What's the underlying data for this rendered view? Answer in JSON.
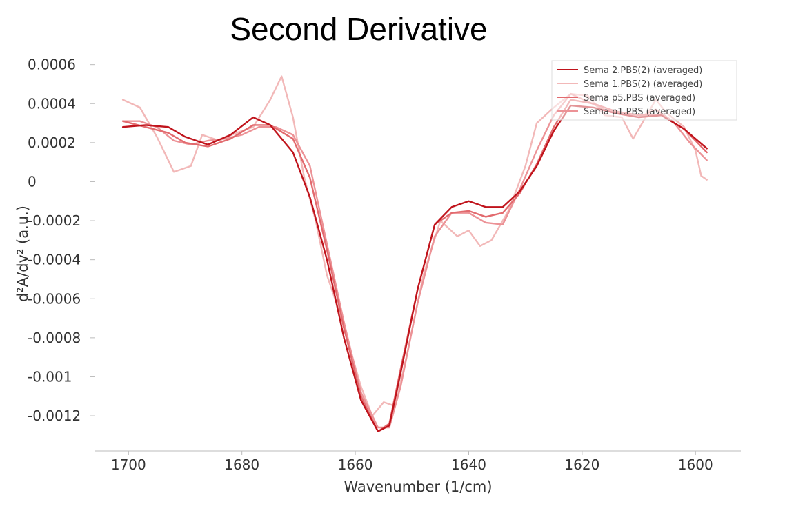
{
  "chart_data": {
    "type": "line",
    "title": "Second Derivative",
    "xlabel": "Wavenumber (1/cm)",
    "ylabel": "d²A/dv² (a.u.)",
    "xlim": [
      1706,
      1592
    ],
    "ylim": [
      -0.00138,
      0.00062
    ],
    "x_reversed": true,
    "grid": false,
    "legend_position": "top-right",
    "x_ticks": [
      {
        "value": 1700,
        "label": "1700"
      },
      {
        "value": 1680,
        "label": "1680"
      },
      {
        "value": 1660,
        "label": "1660"
      },
      {
        "value": 1640,
        "label": "1640"
      },
      {
        "value": 1620,
        "label": "1620"
      },
      {
        "value": 1600,
        "label": "1600"
      }
    ],
    "y_ticks": [
      {
        "value": 0.0006,
        "label": "0.0006"
      },
      {
        "value": 0.0004,
        "label": "0.0004"
      },
      {
        "value": 0.0002,
        "label": "0.0002"
      },
      {
        "value": 0,
        "label": "0"
      },
      {
        "value": -0.0002,
        "label": "-0.0002"
      },
      {
        "value": -0.0004,
        "label": "-0.0004"
      },
      {
        "value": -0.0006,
        "label": "-0.0006"
      },
      {
        "value": -0.0008,
        "label": "-0.0008"
      },
      {
        "value": -0.001,
        "label": "-0.001"
      },
      {
        "value": -0.0012,
        "label": "-0.0012"
      }
    ],
    "series": [
      {
        "name": "Sema 2.PBS(2) (averaged)",
        "color": "#c0141c",
        "points": [
          [
            1701,
            0.00028
          ],
          [
            1697,
            0.00029
          ],
          [
            1693,
            0.00028
          ],
          [
            1690,
            0.00023
          ],
          [
            1686,
            0.00019
          ],
          [
            1682,
            0.00024
          ],
          [
            1678,
            0.00033
          ],
          [
            1675,
            0.00029
          ],
          [
            1671,
            0.00015
          ],
          [
            1668,
            -8e-05
          ],
          [
            1665,
            -0.0004
          ],
          [
            1662,
            -0.0008
          ],
          [
            1659,
            -0.00112
          ],
          [
            1656,
            -0.00128
          ],
          [
            1654,
            -0.00125
          ],
          [
            1652,
            -0.00098
          ],
          [
            1649,
            -0.00055
          ],
          [
            1646,
            -0.00022
          ],
          [
            1643,
            -0.00013
          ],
          [
            1640,
            -0.0001
          ],
          [
            1637,
            -0.00013
          ],
          [
            1634,
            -0.00013
          ],
          [
            1631,
            -5e-05
          ],
          [
            1628,
            8e-05
          ],
          [
            1625,
            0.00026
          ],
          [
            1622,
            0.00039
          ],
          [
            1618,
            0.00038
          ],
          [
            1614,
            0.00035
          ],
          [
            1610,
            0.00033
          ],
          [
            1606,
            0.00034
          ],
          [
            1602,
            0.00027
          ],
          [
            1598,
            0.00017
          ]
        ]
      },
      {
        "name": "Sema 1.PBS(2) (averaged)",
        "color": "#f2b8b8",
        "points": [
          [
            1701,
            0.00042
          ],
          [
            1698,
            0.00038
          ],
          [
            1695,
            0.00023
          ],
          [
            1692,
            5e-05
          ],
          [
            1689,
            8e-05
          ],
          [
            1687,
            0.00024
          ],
          [
            1684,
            0.00021
          ],
          [
            1681,
            0.00025
          ],
          [
            1678,
            0.00028
          ],
          [
            1675,
            0.00042
          ],
          [
            1673,
            0.00054
          ],
          [
            1671,
            0.00033
          ],
          [
            1669,
            2e-05
          ],
          [
            1667,
            -0.0002
          ],
          [
            1665,
            -0.00048
          ],
          [
            1663,
            -0.00065
          ],
          [
            1661,
            -0.00085
          ],
          [
            1659,
            -0.00105
          ],
          [
            1657,
            -0.0012
          ],
          [
            1655,
            -0.00113
          ],
          [
            1653,
            -0.00115
          ],
          [
            1651,
            -0.0009
          ],
          [
            1648,
            -0.00048
          ],
          [
            1645,
            -0.0002
          ],
          [
            1642,
            -0.00028
          ],
          [
            1640,
            -0.00025
          ],
          [
            1638,
            -0.00033
          ],
          [
            1636,
            -0.0003
          ],
          [
            1633,
            -0.00015
          ],
          [
            1630,
            8e-05
          ],
          [
            1628,
            0.0003
          ],
          [
            1625,
            0.00038
          ],
          [
            1622,
            0.00045
          ],
          [
            1619,
            0.00044
          ],
          [
            1616,
            0.00034
          ],
          [
            1613,
            0.00033
          ],
          [
            1611,
            0.00022
          ],
          [
            1609,
            0.00032
          ],
          [
            1607,
            0.00042
          ],
          [
            1605,
            0.00035
          ],
          [
            1602,
            0.00028
          ],
          [
            1600,
            0.00016
          ],
          [
            1599,
            3e-05
          ],
          [
            1598,
            1e-05
          ]
        ]
      },
      {
        "name": "Sema p5.PBS (averaged)",
        "color": "#e26a6e",
        "points": [
          [
            1701,
            0.00031
          ],
          [
            1697,
            0.00028
          ],
          [
            1693,
            0.00025
          ],
          [
            1690,
            0.0002
          ],
          [
            1686,
            0.00018
          ],
          [
            1682,
            0.00022
          ],
          [
            1678,
            0.00029
          ],
          [
            1675,
            0.00029
          ],
          [
            1671,
            0.00022
          ],
          [
            1668,
            2e-05
          ],
          [
            1665,
            -0.00035
          ],
          [
            1662,
            -0.00075
          ],
          [
            1659,
            -0.0011
          ],
          [
            1656,
            -0.00128
          ],
          [
            1654,
            -0.00124
          ],
          [
            1652,
            -0.00096
          ],
          [
            1649,
            -0.00055
          ],
          [
            1646,
            -0.00022
          ],
          [
            1643,
            -0.00016
          ],
          [
            1640,
            -0.00015
          ],
          [
            1637,
            -0.00018
          ],
          [
            1634,
            -0.00016
          ],
          [
            1631,
            -6e-05
          ],
          [
            1628,
            9e-05
          ],
          [
            1625,
            0.00028
          ],
          [
            1622,
            0.00042
          ],
          [
            1618,
            0.0004
          ],
          [
            1614,
            0.00036
          ],
          [
            1610,
            0.00034
          ],
          [
            1606,
            0.00034
          ],
          [
            1602,
            0.00027
          ],
          [
            1598,
            0.00015
          ]
        ]
      },
      {
        "name": "Sema p1.PBS (averaged)",
        "color": "#ec9296",
        "points": [
          [
            1701,
            0.00031
          ],
          [
            1698,
            0.00031
          ],
          [
            1695,
            0.00028
          ],
          [
            1692,
            0.00021
          ],
          [
            1689,
            0.00019
          ],
          [
            1686,
            0.00021
          ],
          [
            1683,
            0.00022
          ],
          [
            1680,
            0.00024
          ],
          [
            1677,
            0.00028
          ],
          [
            1674,
            0.00028
          ],
          [
            1671,
            0.00024
          ],
          [
            1668,
            8e-05
          ],
          [
            1665,
            -0.00032
          ],
          [
            1662,
            -0.00072
          ],
          [
            1659,
            -0.00108
          ],
          [
            1656,
            -0.00126
          ],
          [
            1654,
            -0.00126
          ],
          [
            1652,
            -0.00105
          ],
          [
            1649,
            -0.00062
          ],
          [
            1646,
            -0.00028
          ],
          [
            1643,
            -0.00016
          ],
          [
            1640,
            -0.00016
          ],
          [
            1637,
            -0.00021
          ],
          [
            1634,
            -0.00022
          ],
          [
            1631,
            -4e-05
          ],
          [
            1628,
            0.00016
          ],
          [
            1625,
            0.00034
          ],
          [
            1622,
            0.00045
          ],
          [
            1619,
            0.00041
          ],
          [
            1616,
            0.00037
          ],
          [
            1613,
            0.00035
          ],
          [
            1610,
            0.00033
          ],
          [
            1607,
            0.00037
          ],
          [
            1604,
            0.00031
          ],
          [
            1601,
            0.0002
          ],
          [
            1598,
            0.00011
          ]
        ]
      }
    ]
  }
}
